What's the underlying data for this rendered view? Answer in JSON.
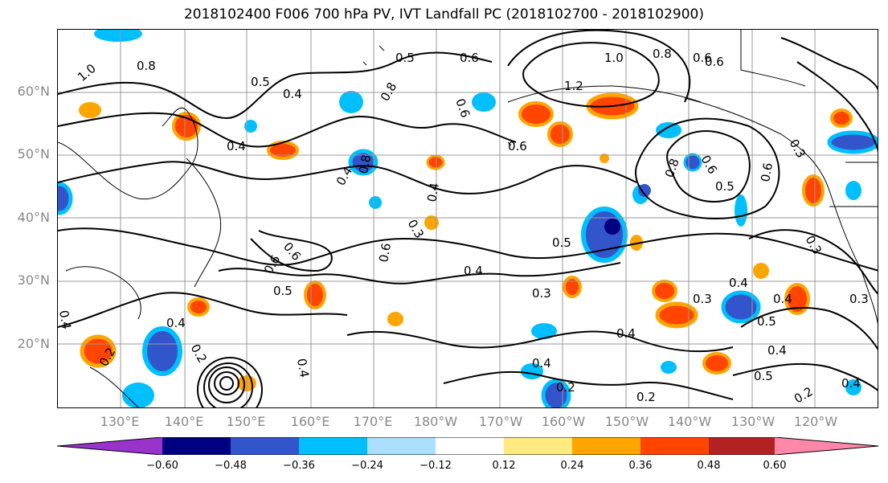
{
  "title": "2018102400 F006 700 hPa PV, IVT Landfall PC (2018102700 - 2018102900)",
  "lat_labels": [
    "60°N",
    "50°N",
    "40°N",
    "30°N",
    "20°N"
  ],
  "lon_labels": [
    "130°E",
    "140°E",
    "150°E",
    "160°E",
    "170°E",
    "180°W",
    "170°W",
    "160°W",
    "150°W",
    "140°W",
    "130°W",
    "120°W"
  ],
  "colorbar": {
    "colors": [
      "#9933cc",
      "#000080",
      "#3355cc",
      "#00bfff",
      "#aadfff",
      "#ffffff",
      "#ffea80",
      "#ffa500",
      "#ff4500",
      "#b22222",
      "#ff88aa"
    ],
    "ticks": [
      "−0.60",
      "−0.48",
      "−0.36",
      "−0.24",
      "−0.12",
      "0.12",
      "0.24",
      "0.36",
      "0.48",
      "0.60"
    ]
  },
  "contour_labels": [
    "0.8",
    "1.0",
    "0.5",
    "0.4",
    "0.6",
    "0.5",
    "0.6",
    "0.8",
    "1.2",
    "0.8",
    "1.0",
    "0.8",
    "0.6",
    "0.6",
    "0.3",
    "0.4",
    "0.6",
    "0.5",
    "0.4",
    "0.8",
    "0.6",
    "0.6",
    "0.3",
    "0.4",
    "0.5",
    "0.6",
    "0.6",
    "0.3",
    "0.4",
    "0.5",
    "0.4",
    "0.6",
    "0.3",
    "0.3",
    "0.4",
    "0.5",
    "0.4",
    "0.4",
    "0.3",
    "0.4",
    "0.4",
    "0.2",
    "0.4",
    "0.2",
    "0.5",
    "0.2",
    "0.2",
    "0.4",
    "0.2",
    "0.4"
  ]
}
